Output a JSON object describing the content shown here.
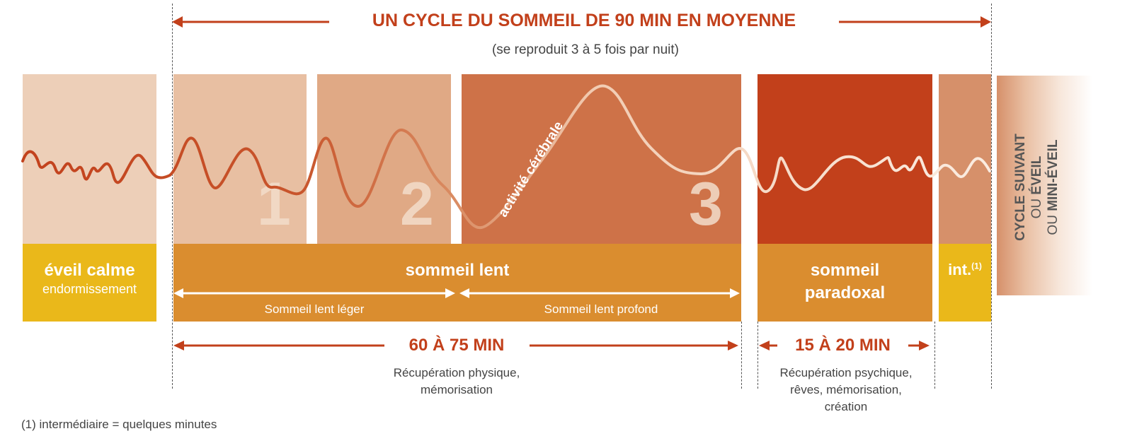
{
  "header": {
    "title": "UN CYCLE DU SOMMEIL DE 90 MIN EN MOYENNE",
    "subtitle": "(se reproduit 3 à 5 fois par nuit)"
  },
  "stages": {
    "eveil": {
      "title": "éveil calme",
      "subtitle": "endormissement"
    },
    "stage1": "1",
    "stage2": "2",
    "stage3": "3",
    "lent": {
      "title": "sommeil lent",
      "leger": "Sommeil lent léger",
      "profond": "Sommeil lent profond"
    },
    "paradoxal": {
      "line1": "sommeil",
      "line2": "paradoxal"
    },
    "int": {
      "label": "int.",
      "note": "(1)"
    },
    "next": {
      "line1": "CYCLE SUIVANT",
      "line2_a": "OU ",
      "line2_b": "ÉVEIL",
      "line3_a": "OU ",
      "line3_b": "MINI-ÉVEIL"
    }
  },
  "wave_label": "activité cérébrale",
  "durations": {
    "lent": "60 À 75 MIN",
    "lent_desc1": "Récupération physique,",
    "lent_desc2": "mémorisation",
    "para": "15 À 20 MIN",
    "para_desc1": "Récupération psychique,",
    "para_desc2": "rêves, mémorisation,",
    "para_desc3": "création"
  },
  "footnote": "(1) intermédiaire = quelques minutes",
  "colors": {
    "eveil": "#EDCFB8",
    "s1": "#E8BFA2",
    "s2": "#E0A985",
    "s3": "#CE7248",
    "para": "#C2401B",
    "int": "#D6906A",
    "yellow": "#EAB81A",
    "orange": "#DA8D2F",
    "red": "#C2401B"
  }
}
